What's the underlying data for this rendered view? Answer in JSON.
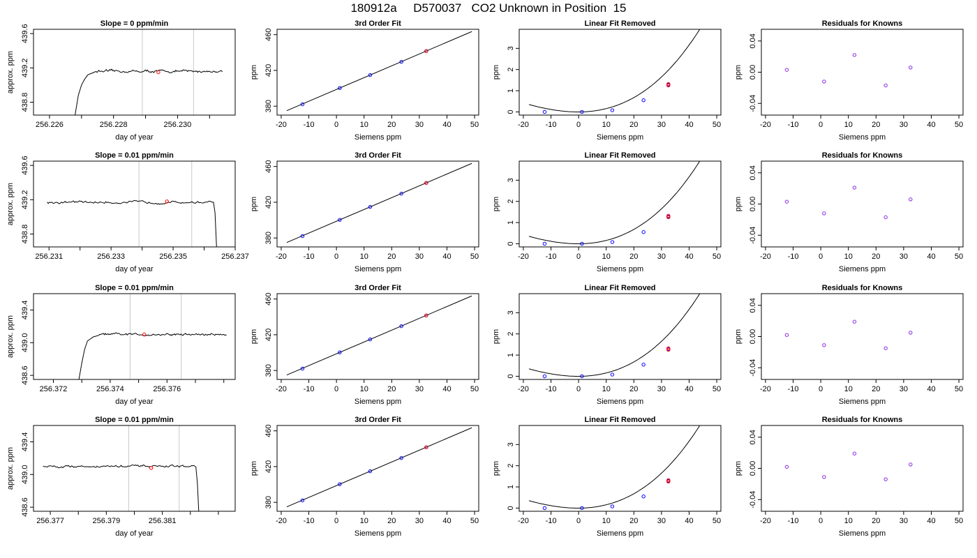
{
  "page": {
    "title": "180912a     D570037   CO2 Unknown in Position  15"
  },
  "colors": {
    "axis": "#000000",
    "trace": "#000000",
    "vline": "#c8c8c8",
    "point_blue": "#0000ff",
    "point_red": "#ff0000",
    "residual_point": "#8a2be2"
  },
  "chart_data": [
    {
      "type": "line",
      "row": 0,
      "col": 0,
      "title": "Slope =  0  ppm/min",
      "xlabel": "day of year",
      "ylabel": "approx. ppm",
      "xlim": [
        256.2255,
        256.2318
      ],
      "ylim": [
        438.65,
        439.65
      ],
      "xticks": [
        256.226,
        256.227,
        256.228,
        256.229,
        256.23,
        256.231
      ],
      "xticklabels": [
        "256.226",
        "",
        "256.228",
        "",
        "256.230",
        ""
      ],
      "yticks": [
        438.8,
        439.2,
        439.6
      ],
      "yticklabels": [
        "438.8",
        "439.2",
        "439.6"
      ],
      "vlines": [
        256.2289,
        256.2305
      ],
      "trace": {
        "x_start": 256.2268,
        "x_end": 256.2314,
        "plateau": 439.16,
        "rise_points": [
          [
            256.2268,
            438.65
          ],
          [
            256.2269,
            438.88
          ],
          [
            256.227,
            439.0
          ],
          [
            256.2271,
            439.07
          ],
          [
            256.2272,
            439.12
          ],
          [
            256.2274,
            439.15
          ]
        ]
      },
      "highlight": {
        "x": 256.2294,
        "y": 439.15
      }
    },
    {
      "type": "line",
      "row": 1,
      "col": 0,
      "title": "Slope =  0.01  ppm/min",
      "xlabel": "day of year",
      "ylabel": "approx. ppm",
      "xlim": [
        256.2305,
        256.237
      ],
      "ylim": [
        438.65,
        439.65
      ],
      "xticks": [
        256.231,
        256.232,
        256.233,
        256.234,
        256.235,
        256.236,
        256.237
      ],
      "xticklabels": [
        "256.231",
        "",
        "256.233",
        "",
        "256.235",
        "",
        "256.237"
      ],
      "yticks": [
        438.8,
        439.2,
        439.6
      ],
      "yticklabels": [
        "438.8",
        "439.2",
        "439.6"
      ],
      "vlines": [
        256.2339,
        256.2356
      ],
      "trace": {
        "x_start": 256.2309,
        "x_end": 256.2363,
        "plateau": 439.17,
        "drop_points": [
          [
            256.2363,
            439.17
          ],
          [
            256.23635,
            439.05
          ],
          [
            256.2364,
            438.65
          ]
        ]
      },
      "highlight": {
        "x": 256.2348,
        "y": 439.18
      }
    },
    {
      "type": "line",
      "row": 2,
      "col": 0,
      "title": "Slope =  0.01  ppm/min",
      "xlabel": "day of year",
      "ylabel": "approx. ppm",
      "xlim": [
        256.3713,
        256.3784
      ],
      "ylim": [
        438.55,
        439.6
      ],
      "xticks": [
        256.372,
        256.373,
        256.374,
        256.375,
        256.376,
        256.377,
        256.378
      ],
      "xticklabels": [
        "256.372",
        "",
        "256.374",
        "",
        "256.376",
        "",
        ""
      ],
      "yticks": [
        438.6,
        439.0,
        439.4
      ],
      "yticklabels": [
        "438.6",
        "439.0",
        "439.4"
      ],
      "vlines": [
        256.3747,
        256.3765
      ],
      "trace": {
        "x_start": 256.3729,
        "x_end": 256.3781,
        "plateau": 439.1,
        "rise_points": [
          [
            256.3729,
            438.55
          ],
          [
            256.373,
            438.75
          ],
          [
            256.3731,
            438.92
          ],
          [
            256.3732,
            439.02
          ],
          [
            256.3734,
            439.07
          ],
          [
            256.3736,
            439.09
          ]
        ]
      },
      "highlight": {
        "x": 256.3752,
        "y": 439.1
      }
    },
    {
      "type": "line",
      "row": 3,
      "col": 0,
      "title": "Slope =  0.01  ppm/min",
      "xlabel": "day of year",
      "ylabel": "approx. ppm",
      "xlim": [
        256.3764,
        256.3836
      ],
      "ylim": [
        438.55,
        439.6
      ],
      "xticks": [
        256.377,
        256.378,
        256.379,
        256.38,
        256.381,
        256.382,
        256.383
      ],
      "xticklabels": [
        "256.377",
        "",
        "256.379",
        "",
        "256.381",
        "",
        ""
      ],
      "yticks": [
        438.6,
        439.0,
        439.4
      ],
      "yticklabels": [
        "438.6",
        "439.0",
        "439.4"
      ],
      "vlines": [
        256.3798,
        256.3816
      ],
      "trace": {
        "x_start": 256.3767,
        "x_end": 256.3822,
        "plateau": 439.1,
        "drop_points": [
          [
            256.3822,
            439.08
          ],
          [
            256.38225,
            438.9
          ],
          [
            256.3823,
            438.55
          ]
        ]
      },
      "highlight": {
        "x": 256.3806,
        "y": 439.08
      }
    },
    {
      "type": "scatter",
      "row": 0,
      "col": 1,
      "title": "3rd Order Fit",
      "xlabel": "Siemens ppm",
      "ylabel": "ppm",
      "xlim": [
        -21.5,
        51.5
      ],
      "ylim": [
        370,
        466
      ],
      "xticks": [
        -20,
        -10,
        0,
        10,
        20,
        30,
        40,
        50
      ],
      "xticklabels": [
        "-20",
        "-10",
        "0",
        "10",
        "20",
        "30",
        "40",
        "50"
      ],
      "yticks": [
        380,
        420,
        460
      ],
      "yticklabels": [
        "380",
        "420",
        "460"
      ],
      "line": {
        "intercept": 398.7,
        "slope": 1.322,
        "x_from": -18,
        "x_to": 49
      },
      "points": [
        [
          -12.3,
          382.1
        ],
        [
          1.2,
          400.3
        ],
        [
          12.2,
          414.8
        ],
        [
          23.5,
          429.6
        ],
        [
          32.5,
          441.6
        ]
      ],
      "highlight": [
        32.5,
        441.6
      ]
    },
    {
      "type": "scatter",
      "row": 1,
      "col": 1,
      "title": "3rd Order Fit",
      "xlabel": "Siemens ppm",
      "ylabel": "ppm",
      "xlim": [
        -21.5,
        51.5
      ],
      "ylim": [
        370,
        466
      ],
      "xticks": [
        -20,
        -10,
        0,
        10,
        20,
        30,
        40,
        50
      ],
      "xticklabels": [
        "-20",
        "-10",
        "0",
        "10",
        "20",
        "30",
        "40",
        "50"
      ],
      "yticks": [
        380,
        420,
        460
      ],
      "yticklabels": [
        "380",
        "420",
        "460"
      ],
      "line": {
        "intercept": 398.7,
        "slope": 1.322,
        "x_from": -18,
        "x_to": 49
      },
      "points": [
        [
          -12.3,
          382.1
        ],
        [
          1.2,
          400.3
        ],
        [
          12.2,
          414.8
        ],
        [
          23.5,
          429.6
        ],
        [
          32.5,
          441.6
        ]
      ],
      "highlight": [
        32.5,
        441.6
      ]
    },
    {
      "type": "scatter",
      "row": 2,
      "col": 1,
      "title": "3rd Order Fit",
      "xlabel": "Siemens ppm",
      "ylabel": "ppm",
      "xlim": [
        -21.5,
        51.5
      ],
      "ylim": [
        370,
        466
      ],
      "xticks": [
        -20,
        -10,
        0,
        10,
        20,
        30,
        40,
        50
      ],
      "xticklabels": [
        "-20",
        "-10",
        "0",
        "10",
        "20",
        "30",
        "40",
        "50"
      ],
      "yticks": [
        380,
        420,
        460
      ],
      "yticklabels": [
        "380",
        "420",
        "460"
      ],
      "line": {
        "intercept": 398.7,
        "slope": 1.322,
        "x_from": -18,
        "x_to": 49
      },
      "points": [
        [
          -12.3,
          382.1
        ],
        [
          1.2,
          400.3
        ],
        [
          12.2,
          414.8
        ],
        [
          23.5,
          429.6
        ],
        [
          32.5,
          441.6
        ]
      ],
      "highlight": [
        32.5,
        441.6
      ]
    },
    {
      "type": "scatter",
      "row": 3,
      "col": 1,
      "title": "3rd Order Fit",
      "xlabel": "Siemens ppm",
      "ylabel": "ppm",
      "xlim": [
        -21.5,
        51.5
      ],
      "ylim": [
        370,
        466
      ],
      "xticks": [
        -20,
        -10,
        0,
        10,
        20,
        30,
        40,
        50
      ],
      "xticklabels": [
        "-20",
        "-10",
        "0",
        "10",
        "20",
        "30",
        "40",
        "50"
      ],
      "yticks": [
        380,
        420,
        460
      ],
      "yticklabels": [
        "380",
        "420",
        "460"
      ],
      "line": {
        "intercept": 398.7,
        "slope": 1.322,
        "x_from": -18,
        "x_to": 49
      },
      "points": [
        [
          -12.3,
          382.1
        ],
        [
          1.2,
          400.3
        ],
        [
          12.2,
          414.8
        ],
        [
          23.5,
          429.6
        ],
        [
          32.5,
          441.6
        ]
      ],
      "highlight": [
        32.5,
        441.6
      ]
    },
    {
      "type": "scatter",
      "row": 0,
      "col": 2,
      "title": "Linear Fit Removed",
      "xlabel": "Siemens ppm",
      "ylabel": "ppm",
      "xlim": [
        -21.5,
        51.5
      ],
      "ylim": [
        -0.15,
        3.9
      ],
      "xticks": [
        -20,
        -10,
        0,
        10,
        20,
        30,
        40,
        50
      ],
      "xticklabels": [
        "-20",
        "-10",
        "0",
        "10",
        "20",
        "30",
        "40",
        "50"
      ],
      "yticks": [
        0,
        1,
        2,
        3
      ],
      "yticklabels": [
        "0",
        "1",
        "2",
        "3"
      ],
      "curve": {
        "c0": -0.0021,
        "c1": 0.00059,
        "c2": 0.00138,
        "c3": 1.45e-05,
        "x_from": -18,
        "x_to": 49
      },
      "points": [
        [
          -12.3,
          0.0
        ],
        [
          1.2,
          0.0
        ],
        [
          12.2,
          0.08
        ],
        [
          23.5,
          0.55
        ],
        [
          32.5,
          1.28
        ]
      ],
      "highlight": [
        [
          32.5,
          1.25
        ],
        [
          32.5,
          1.32
        ]
      ]
    },
    {
      "type": "scatter",
      "row": 1,
      "col": 2,
      "title": "Linear Fit Removed",
      "xlabel": "Siemens ppm",
      "ylabel": "ppm",
      "xlim": [
        -21.5,
        51.5
      ],
      "ylim": [
        -0.15,
        3.9
      ],
      "xticks": [
        -20,
        -10,
        0,
        10,
        20,
        30,
        40,
        50
      ],
      "xticklabels": [
        "-20",
        "-10",
        "0",
        "10",
        "20",
        "30",
        "40",
        "50"
      ],
      "yticks": [
        0,
        1,
        2,
        3
      ],
      "yticklabels": [
        "0",
        "1",
        "2",
        "3"
      ],
      "curve": {
        "c0": -0.0021,
        "c1": 0.00059,
        "c2": 0.00138,
        "c3": 1.45e-05,
        "x_from": -18,
        "x_to": 49
      },
      "points": [
        [
          -12.3,
          0.0
        ],
        [
          1.2,
          0.0
        ],
        [
          12.2,
          0.08
        ],
        [
          23.5,
          0.55
        ],
        [
          32.5,
          1.28
        ]
      ],
      "highlight": [
        [
          32.5,
          1.25
        ],
        [
          32.5,
          1.32
        ]
      ]
    },
    {
      "type": "scatter",
      "row": 2,
      "col": 2,
      "title": "Linear Fit Removed",
      "xlabel": "Siemens ppm",
      "ylabel": "ppm",
      "xlim": [
        -21.5,
        51.5
      ],
      "ylim": [
        -0.15,
        3.9
      ],
      "xticks": [
        -20,
        -10,
        0,
        10,
        20,
        30,
        40,
        50
      ],
      "xticklabels": [
        "-20",
        "-10",
        "0",
        "10",
        "20",
        "30",
        "40",
        "50"
      ],
      "yticks": [
        0,
        1,
        2,
        3
      ],
      "yticklabels": [
        "0",
        "1",
        "2",
        "3"
      ],
      "curve": {
        "c0": -0.0021,
        "c1": 0.00059,
        "c2": 0.00138,
        "c3": 1.45e-05,
        "x_from": -18,
        "x_to": 49
      },
      "points": [
        [
          -12.3,
          0.0
        ],
        [
          1.2,
          0.0
        ],
        [
          12.2,
          0.08
        ],
        [
          23.5,
          0.55
        ],
        [
          32.5,
          1.28
        ]
      ],
      "highlight": [
        [
          32.5,
          1.25
        ],
        [
          32.5,
          1.32
        ]
      ]
    },
    {
      "type": "scatter",
      "row": 3,
      "col": 2,
      "title": "Linear Fit Removed",
      "xlabel": "Siemens ppm",
      "ylabel": "ppm",
      "xlim": [
        -21.5,
        51.5
      ],
      "ylim": [
        -0.15,
        3.9
      ],
      "xticks": [
        -20,
        -10,
        0,
        10,
        20,
        30,
        40,
        50
      ],
      "xticklabels": [
        "-20",
        "-10",
        "0",
        "10",
        "20",
        "30",
        "40",
        "50"
      ],
      "yticks": [
        0,
        1,
        2,
        3
      ],
      "yticklabels": [
        "0",
        "1",
        "2",
        "3"
      ],
      "curve": {
        "c0": -0.0021,
        "c1": 0.00059,
        "c2": 0.00138,
        "c3": 1.45e-05,
        "x_from": -18,
        "x_to": 49
      },
      "points": [
        [
          -12.3,
          0.0
        ],
        [
          1.2,
          0.0
        ],
        [
          12.2,
          0.08
        ],
        [
          23.5,
          0.55
        ],
        [
          32.5,
          1.28
        ]
      ],
      "highlight": [
        [
          32.5,
          1.25
        ],
        [
          32.5,
          1.32
        ]
      ]
    },
    {
      "type": "scatter",
      "row": 0,
      "col": 3,
      "title": "Residuals for Knowns",
      "xlabel": "Siemens ppm",
      "ylabel": "ppm",
      "xlim": [
        -21.5,
        51.5
      ],
      "ylim": [
        -0.055,
        0.055
      ],
      "xticks": [
        -20,
        -10,
        0,
        10,
        20,
        30,
        40,
        50
      ],
      "xticklabels": [
        "-20",
        "-10",
        "0",
        "10",
        "20",
        "30",
        "40",
        "50"
      ],
      "yticks": [
        -0.04,
        0,
        0.04
      ],
      "yticklabels": [
        "-0.04",
        "0.00",
        "0.04"
      ],
      "points": [
        [
          -12.3,
          0.003
        ],
        [
          1.2,
          -0.012
        ],
        [
          12.2,
          0.022
        ],
        [
          23.5,
          -0.017
        ],
        [
          32.5,
          0.006
        ]
      ]
    },
    {
      "type": "scatter",
      "row": 1,
      "col": 3,
      "title": "Residuals for Knowns",
      "xlabel": "Siemens ppm",
      "ylabel": "ppm",
      "xlim": [
        -21.5,
        51.5
      ],
      "ylim": [
        -0.055,
        0.055
      ],
      "xticks": [
        -20,
        -10,
        0,
        10,
        20,
        30,
        40,
        50
      ],
      "xticklabels": [
        "-20",
        "-10",
        "0",
        "10",
        "20",
        "30",
        "40",
        "50"
      ],
      "yticks": [
        -0.04,
        0,
        0.04
      ],
      "yticklabels": [
        "-0.04",
        "0.00",
        "0.04"
      ],
      "points": [
        [
          -12.3,
          0.003
        ],
        [
          1.2,
          -0.012
        ],
        [
          12.2,
          0.021
        ],
        [
          23.5,
          -0.017
        ],
        [
          32.5,
          0.006
        ]
      ]
    },
    {
      "type": "scatter",
      "row": 2,
      "col": 3,
      "title": "Residuals for Knowns",
      "xlabel": "Siemens ppm",
      "ylabel": "ppm",
      "xlim": [
        -21.5,
        51.5
      ],
      "ylim": [
        -0.055,
        0.055
      ],
      "xticks": [
        -20,
        -10,
        0,
        10,
        20,
        30,
        40,
        50
      ],
      "xticklabels": [
        "-20",
        "-10",
        "0",
        "10",
        "20",
        "30",
        "40",
        "50"
      ],
      "yticks": [
        -0.04,
        0,
        0.04
      ],
      "yticklabels": [
        "-0.04",
        "0.00",
        "0.04"
      ],
      "points": [
        [
          -12.3,
          0.002
        ],
        [
          1.2,
          -0.011
        ],
        [
          12.2,
          0.019
        ],
        [
          23.5,
          -0.015
        ],
        [
          32.5,
          0.005
        ]
      ]
    },
    {
      "type": "scatter",
      "row": 3,
      "col": 3,
      "title": "Residuals for Knowns",
      "xlabel": "Siemens ppm",
      "ylabel": "ppm",
      "xlim": [
        -21.5,
        51.5
      ],
      "ylim": [
        -0.055,
        0.055
      ],
      "xticks": [
        -20,
        -10,
        0,
        10,
        20,
        30,
        40,
        50
      ],
      "xticklabels": [
        "-20",
        "-10",
        "0",
        "10",
        "20",
        "30",
        "40",
        "50"
      ],
      "yticks": [
        -0.04,
        0,
        0.04
      ],
      "yticklabels": [
        "-0.04",
        "0.00",
        "0.04"
      ],
      "points": [
        [
          -12.3,
          0.002
        ],
        [
          1.2,
          -0.011
        ],
        [
          12.2,
          0.019
        ],
        [
          23.5,
          -0.014
        ],
        [
          32.5,
          0.005
        ]
      ]
    }
  ]
}
